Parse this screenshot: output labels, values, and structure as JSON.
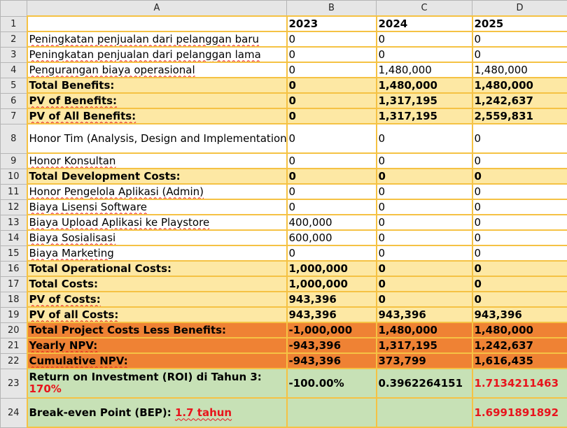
{
  "sheet": {
    "columns": [
      "A",
      "B",
      "C",
      "D"
    ],
    "rows": [
      {
        "num": "1",
        "cells": [
          "",
          "2023",
          "2024",
          "2025"
        ]
      },
      {
        "num": "2",
        "cells": [
          "Peningkatan penjualan dari pelanggan baru",
          "0",
          "0",
          "0"
        ]
      },
      {
        "num": "3",
        "cells": [
          "Peningkatan penjualan dari pelanggan lama",
          "0",
          "0",
          "0"
        ]
      },
      {
        "num": "4",
        "cells": [
          "Pengurangan biaya operasional",
          "0",
          "1,480,000",
          "1,480,000"
        ]
      },
      {
        "num": "5",
        "cells": [
          "Total Benefits:",
          "0",
          "1,480,000",
          "1,480,000"
        ]
      },
      {
        "num": "6",
        "cells": [
          "PV of Benefits:",
          "0",
          "1,317,195",
          "1,242,637"
        ]
      },
      {
        "num": "7",
        "cells": [
          "PV of All Benefits:",
          "0",
          "1,317,195",
          "2,559,831"
        ]
      },
      {
        "num": "8",
        "cells": [
          "Honor Tim (Analysis, Design and Implementation)",
          "0",
          "0",
          "0"
        ]
      },
      {
        "num": "9",
        "cells": [
          "Honor Konsultan",
          "0",
          "0",
          "0"
        ]
      },
      {
        "num": "10",
        "cells": [
          "Total Development Costs:",
          "0",
          "0",
          "0"
        ]
      },
      {
        "num": "11",
        "cells": [
          "Honor Pengelola Aplikasi (Admin)",
          "0",
          "0",
          "0"
        ]
      },
      {
        "num": "12",
        "cells": [
          "Biaya Lisensi Software",
          "0",
          "0",
          "0"
        ]
      },
      {
        "num": "13",
        "cells": [
          "Biaya Upload Aplikasi ke Playstore",
          "400,000",
          "0",
          "0"
        ]
      },
      {
        "num": "14",
        "cells": [
          "Biaya Sosialisasi",
          "600,000",
          "0",
          "0"
        ]
      },
      {
        "num": "15",
        "cells": [
          "Biaya Marketing",
          "0",
          "0",
          "0"
        ]
      },
      {
        "num": "16",
        "cells": [
          "Total Operational Costs:",
          "1,000,000",
          "0",
          "0"
        ]
      },
      {
        "num": "17",
        "cells": [
          "Total Costs:",
          "1,000,000",
          "0",
          "0"
        ]
      },
      {
        "num": "18",
        "cells": [
          "PV of Costs:",
          "943,396",
          "0",
          "0"
        ]
      },
      {
        "num": "19",
        "cells": [
          "PV of all Costs:",
          "943,396",
          "943,396",
          "943,396"
        ]
      },
      {
        "num": "20",
        "cells": [
          "Total Project Costs Less Benefits:",
          "-1,000,000",
          "1,480,000",
          "1,480,000"
        ]
      },
      {
        "num": "21",
        "cells": [
          "Yearly NPV:",
          "-943,396",
          "1,317,195",
          "1,242,637"
        ]
      },
      {
        "num": "22",
        "cells": [
          "Cumulative NPV:",
          "-943,396",
          "373,799",
          "1,616,435"
        ]
      },
      {
        "num": "23",
        "cells": [
          "Return on Investment (ROI) di Tahun 3:",
          "-100.00%",
          "0.3962264151",
          "1.7134211463"
        ],
        "a_extra": "170%"
      },
      {
        "num": "24",
        "cells": [
          "Break-even Point (BEP):",
          "",
          "",
          "1.6991891892"
        ],
        "a_extra": "1.7 tahun"
      }
    ]
  },
  "colors": {
    "cell_border": "#f5c244",
    "yellow_fill": "#fde8a4",
    "orange_fill": "#ef8234",
    "green_fill": "#c7e1b6",
    "highlight_text": "#e8141c",
    "header_gray": "#e6e6e6"
  }
}
